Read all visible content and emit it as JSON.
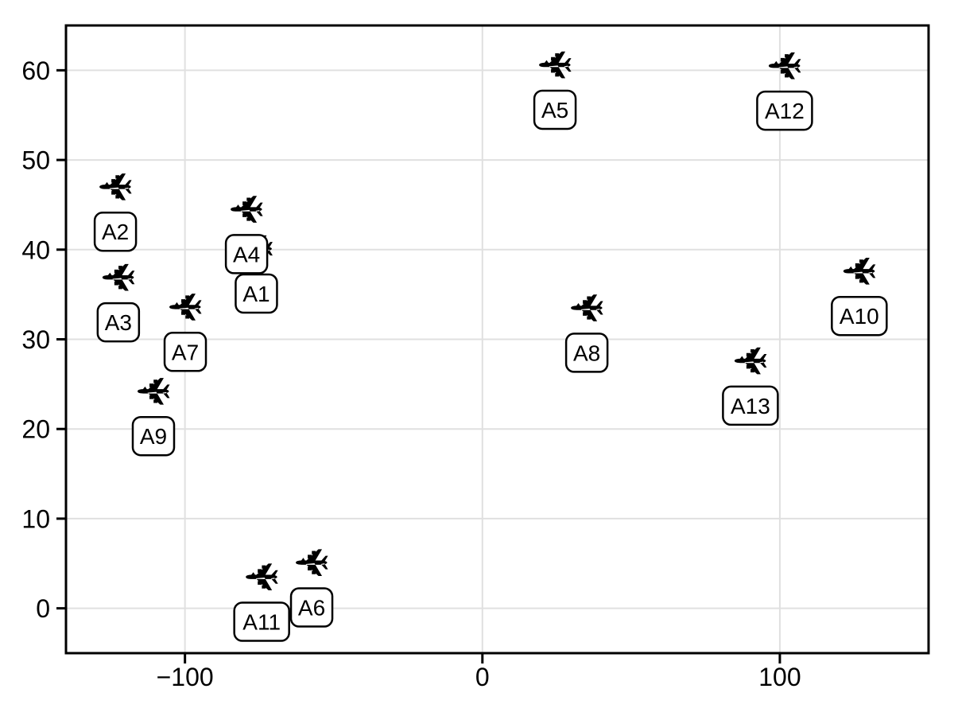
{
  "chart_data": {
    "type": "scatter",
    "title": "",
    "xlabel": "",
    "ylabel": "",
    "grid": true,
    "legend": "none",
    "marker": "airplane-icon",
    "xlim": [
      -140,
      150
    ],
    "ylim": [
      -5,
      65
    ],
    "xticks": {
      "values": [
        -100,
        0,
        100
      ],
      "labels": [
        "−100",
        "0",
        "100"
      ]
    },
    "yticks": {
      "values": [
        0,
        10,
        20,
        30,
        40,
        50,
        60
      ],
      "labels": [
        "0",
        "10",
        "20",
        "30",
        "40",
        "50",
        "60"
      ]
    },
    "label_offset": {
      "dx_units": 0,
      "dy_units": -5
    },
    "points": [
      {
        "label": "A1",
        "x": -76.0,
        "y": 40.1
      },
      {
        "label": "A2",
        "x": -123.4,
        "y": 47.0
      },
      {
        "label": "A3",
        "x": -122.4,
        "y": 36.9
      },
      {
        "label": "A4",
        "x": -79.3,
        "y": 44.5
      },
      {
        "label": "A5",
        "x": 24.4,
        "y": 60.6
      },
      {
        "label": "A6",
        "x": -57.4,
        "y": 5.1
      },
      {
        "label": "A7",
        "x": -99.9,
        "y": 33.6
      },
      {
        "label": "A8",
        "x": 35.1,
        "y": 33.5
      },
      {
        "label": "A9",
        "x": -110.6,
        "y": 24.2
      },
      {
        "label": "A10",
        "x": 126.7,
        "y": 37.6
      },
      {
        "label": "A11",
        "x": -74.2,
        "y": 3.5
      },
      {
        "label": "A12",
        "x": 101.6,
        "y": 60.5
      },
      {
        "label": "A13",
        "x": 90.1,
        "y": 27.6
      }
    ],
    "colors": {
      "marker": "#000000",
      "grid": "#e0e0e0",
      "axis": "#000000",
      "label_box_fill": "#ffffff",
      "label_box_border": "#000000",
      "background": "#ffffff"
    }
  }
}
